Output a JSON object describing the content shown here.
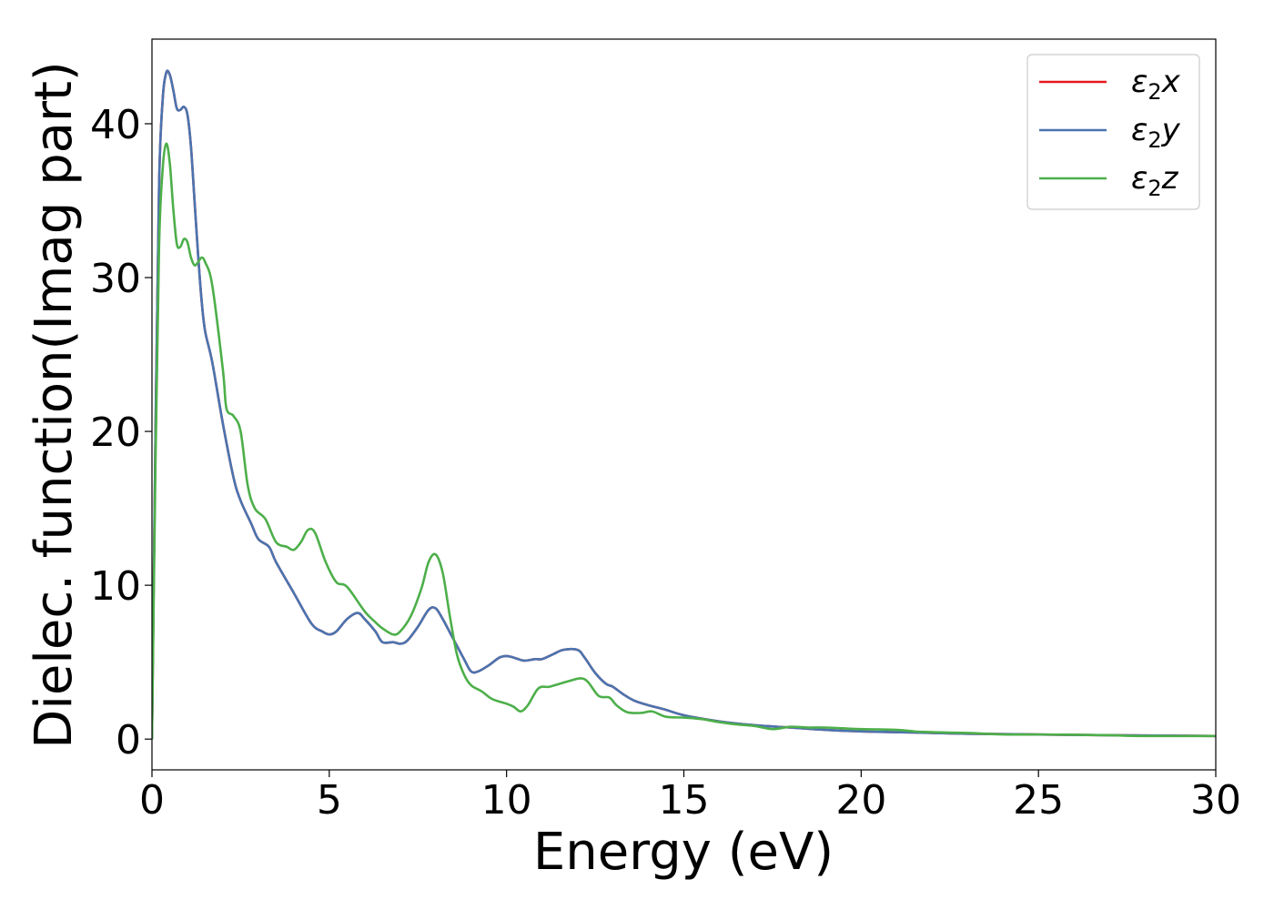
{
  "chart_data": {
    "type": "line",
    "title": "",
    "xlabel": "Energy (eV)",
    "ylabel": "Dielec. function(Imag part)",
    "xlim": [
      0,
      30
    ],
    "ylim": [
      -2,
      45.5
    ],
    "xticks": [
      0,
      5,
      10,
      15,
      20,
      25,
      30
    ],
    "yticks": [
      0,
      10,
      20,
      30,
      40
    ],
    "grid": false,
    "legend_position": "top-right",
    "series": [
      {
        "name": "ε₂x",
        "legend_main": "ε",
        "legend_sub": "2",
        "legend_var": "x",
        "color": "#e41a1c",
        "points": [
          [
            0,
            0
          ],
          [
            0.1,
            20
          ],
          [
            0.2,
            36
          ],
          [
            0.3,
            41.5
          ],
          [
            0.4,
            43.3
          ],
          [
            0.5,
            43.2
          ],
          [
            0.6,
            42.2
          ],
          [
            0.7,
            41
          ],
          [
            0.8,
            40.9
          ],
          [
            0.9,
            41.1
          ],
          [
            1.0,
            40.6
          ],
          [
            1.1,
            38.5
          ],
          [
            1.2,
            35
          ],
          [
            1.3,
            31.5
          ],
          [
            1.4,
            28.5
          ],
          [
            1.5,
            26.5
          ],
          [
            1.7,
            24.5
          ],
          [
            2.0,
            20.5
          ],
          [
            2.3,
            17
          ],
          [
            2.5,
            15.5
          ],
          [
            2.8,
            14
          ],
          [
            3.0,
            13
          ],
          [
            3.3,
            12.5
          ],
          [
            3.5,
            11.5
          ],
          [
            4.0,
            9.5
          ],
          [
            4.5,
            7.5
          ],
          [
            4.8,
            7
          ],
          [
            5.0,
            6.8
          ],
          [
            5.2,
            7
          ],
          [
            5.5,
            7.8
          ],
          [
            5.8,
            8.2
          ],
          [
            6.0,
            7.8
          ],
          [
            6.3,
            7
          ],
          [
            6.5,
            6.3
          ],
          [
            6.8,
            6.3
          ],
          [
            7.0,
            6.2
          ],
          [
            7.2,
            6.4
          ],
          [
            7.5,
            7.3
          ],
          [
            7.8,
            8.4
          ],
          [
            8.0,
            8.5
          ],
          [
            8.2,
            7.8
          ],
          [
            8.5,
            6.5
          ],
          [
            8.8,
            5.2
          ],
          [
            9.0,
            4.4
          ],
          [
            9.2,
            4.4
          ],
          [
            9.5,
            4.8
          ],
          [
            9.8,
            5.3
          ],
          [
            10.0,
            5.4
          ],
          [
            10.2,
            5.3
          ],
          [
            10.5,
            5.1
          ],
          [
            10.8,
            5.2
          ],
          [
            11.0,
            5.2
          ],
          [
            11.3,
            5.5
          ],
          [
            11.6,
            5.8
          ],
          [
            12.0,
            5.8
          ],
          [
            12.2,
            5.3
          ],
          [
            12.5,
            4.3
          ],
          [
            12.8,
            3.6
          ],
          [
            13.0,
            3.4
          ],
          [
            13.3,
            2.9
          ],
          [
            13.6,
            2.5
          ],
          [
            14.0,
            2.2
          ],
          [
            14.5,
            1.9
          ],
          [
            15.0,
            1.55
          ],
          [
            16.0,
            1.15
          ],
          [
            17.0,
            0.9
          ],
          [
            18.0,
            0.75
          ],
          [
            19.0,
            0.6
          ],
          [
            20.0,
            0.5
          ],
          [
            21.0,
            0.45
          ],
          [
            22.0,
            0.4
          ],
          [
            23.0,
            0.35
          ],
          [
            25.0,
            0.3
          ],
          [
            27.0,
            0.25
          ],
          [
            30.0,
            0.2
          ]
        ]
      },
      {
        "name": "ε₂y",
        "legend_main": "ε",
        "legend_sub": "2",
        "legend_var": "y",
        "color": "#4a74b0",
        "points": [
          [
            0,
            0
          ],
          [
            0.1,
            20
          ],
          [
            0.2,
            36
          ],
          [
            0.3,
            41.5
          ],
          [
            0.4,
            43.3
          ],
          [
            0.5,
            43.2
          ],
          [
            0.6,
            42.2
          ],
          [
            0.7,
            41
          ],
          [
            0.8,
            40.9
          ],
          [
            0.9,
            41.1
          ],
          [
            1.0,
            40.6
          ],
          [
            1.1,
            38.5
          ],
          [
            1.2,
            35
          ],
          [
            1.3,
            31.5
          ],
          [
            1.4,
            28.5
          ],
          [
            1.5,
            26.5
          ],
          [
            1.7,
            24.5
          ],
          [
            2.0,
            20.5
          ],
          [
            2.3,
            17
          ],
          [
            2.5,
            15.5
          ],
          [
            2.8,
            14
          ],
          [
            3.0,
            13
          ],
          [
            3.3,
            12.5
          ],
          [
            3.5,
            11.5
          ],
          [
            4.0,
            9.5
          ],
          [
            4.5,
            7.5
          ],
          [
            4.8,
            7
          ],
          [
            5.0,
            6.8
          ],
          [
            5.2,
            7
          ],
          [
            5.5,
            7.8
          ],
          [
            5.8,
            8.2
          ],
          [
            6.0,
            7.8
          ],
          [
            6.3,
            7
          ],
          [
            6.5,
            6.3
          ],
          [
            6.8,
            6.3
          ],
          [
            7.0,
            6.2
          ],
          [
            7.2,
            6.4
          ],
          [
            7.5,
            7.3
          ],
          [
            7.8,
            8.4
          ],
          [
            8.0,
            8.5
          ],
          [
            8.2,
            7.8
          ],
          [
            8.5,
            6.5
          ],
          [
            8.8,
            5.2
          ],
          [
            9.0,
            4.4
          ],
          [
            9.2,
            4.4
          ],
          [
            9.5,
            4.8
          ],
          [
            9.8,
            5.3
          ],
          [
            10.0,
            5.4
          ],
          [
            10.2,
            5.3
          ],
          [
            10.5,
            5.1
          ],
          [
            10.8,
            5.2
          ],
          [
            11.0,
            5.2
          ],
          [
            11.3,
            5.5
          ],
          [
            11.6,
            5.8
          ],
          [
            12.0,
            5.8
          ],
          [
            12.2,
            5.3
          ],
          [
            12.5,
            4.3
          ],
          [
            12.8,
            3.6
          ],
          [
            13.0,
            3.4
          ],
          [
            13.3,
            2.9
          ],
          [
            13.6,
            2.5
          ],
          [
            14.0,
            2.2
          ],
          [
            14.5,
            1.9
          ],
          [
            15.0,
            1.55
          ],
          [
            16.0,
            1.15
          ],
          [
            17.0,
            0.9
          ],
          [
            18.0,
            0.75
          ],
          [
            19.0,
            0.6
          ],
          [
            20.0,
            0.5
          ],
          [
            21.0,
            0.45
          ],
          [
            22.0,
            0.4
          ],
          [
            23.0,
            0.35
          ],
          [
            25.0,
            0.3
          ],
          [
            27.0,
            0.25
          ],
          [
            30.0,
            0.2
          ]
        ]
      },
      {
        "name": "ε₂z",
        "legend_main": "ε",
        "legend_sub": "2",
        "legend_var": "z",
        "color": "#4daf4a",
        "points": [
          [
            0,
            0
          ],
          [
            0.1,
            18
          ],
          [
            0.2,
            32
          ],
          [
            0.3,
            37
          ],
          [
            0.4,
            38.7
          ],
          [
            0.5,
            37.5
          ],
          [
            0.6,
            34.5
          ],
          [
            0.7,
            32.2
          ],
          [
            0.8,
            32
          ],
          [
            0.9,
            32.5
          ],
          [
            1.0,
            32.3
          ],
          [
            1.1,
            31.3
          ],
          [
            1.2,
            30.8
          ],
          [
            1.3,
            31.0
          ],
          [
            1.4,
            31.3
          ],
          [
            1.5,
            31
          ],
          [
            1.7,
            29.5
          ],
          [
            2.0,
            24
          ],
          [
            2.1,
            21.5
          ],
          [
            2.3,
            21
          ],
          [
            2.5,
            20
          ],
          [
            2.7,
            16.5
          ],
          [
            2.9,
            15
          ],
          [
            3.2,
            14.3
          ],
          [
            3.5,
            12.8
          ],
          [
            3.8,
            12.5
          ],
          [
            4.0,
            12.3
          ],
          [
            4.2,
            12.8
          ],
          [
            4.4,
            13.6
          ],
          [
            4.6,
            13.4
          ],
          [
            4.9,
            11.5
          ],
          [
            5.2,
            10.2
          ],
          [
            5.5,
            9.9
          ],
          [
            6.0,
            8.3
          ],
          [
            6.3,
            7.6
          ],
          [
            6.5,
            7.2
          ],
          [
            6.8,
            6.8
          ],
          [
            7.0,
            7.0
          ],
          [
            7.3,
            8.0
          ],
          [
            7.6,
            9.8
          ],
          [
            7.8,
            11.5
          ],
          [
            8.0,
            12.0
          ],
          [
            8.2,
            10.8
          ],
          [
            8.4,
            8.0
          ],
          [
            8.6,
            5.5
          ],
          [
            8.8,
            4.2
          ],
          [
            9.0,
            3.5
          ],
          [
            9.3,
            3.1
          ],
          [
            9.6,
            2.6
          ],
          [
            10.0,
            2.3
          ],
          [
            10.2,
            2.1
          ],
          [
            10.4,
            1.8
          ],
          [
            10.6,
            2.2
          ],
          [
            10.9,
            3.3
          ],
          [
            11.2,
            3.4
          ],
          [
            11.5,
            3.6
          ],
          [
            11.8,
            3.8
          ],
          [
            12.1,
            3.95
          ],
          [
            12.3,
            3.7
          ],
          [
            12.6,
            2.8
          ],
          [
            12.9,
            2.7
          ],
          [
            13.1,
            2.2
          ],
          [
            13.4,
            1.75
          ],
          [
            13.8,
            1.7
          ],
          [
            14.1,
            1.8
          ],
          [
            14.5,
            1.45
          ],
          [
            15.0,
            1.4
          ],
          [
            15.5,
            1.3
          ],
          [
            16.0,
            1.1
          ],
          [
            16.5,
            0.95
          ],
          [
            17.0,
            0.85
          ],
          [
            17.5,
            0.65
          ],
          [
            18.0,
            0.8
          ],
          [
            18.5,
            0.75
          ],
          [
            19.0,
            0.75
          ],
          [
            20.0,
            0.65
          ],
          [
            21.0,
            0.6
          ],
          [
            21.5,
            0.5
          ],
          [
            22.0,
            0.45
          ],
          [
            23.0,
            0.4
          ],
          [
            24.0,
            0.3
          ],
          [
            25.0,
            0.3
          ],
          [
            26.0,
            0.28
          ],
          [
            27.0,
            0.25
          ],
          [
            28.0,
            0.2
          ],
          [
            30.0,
            0.2
          ]
        ]
      }
    ]
  }
}
